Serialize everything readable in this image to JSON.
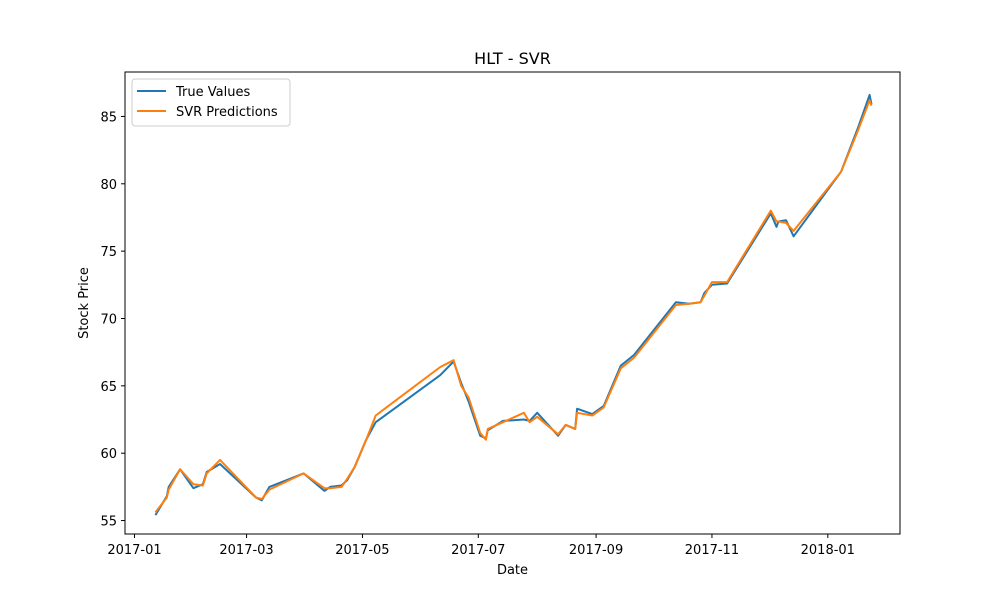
{
  "chart_data": {
    "type": "line",
    "title": "HLT - SVR",
    "xlabel": "Date",
    "ylabel": "Stock Price",
    "xlim": [
      "2016-12-27",
      "2018-02-08"
    ],
    "ylim": [
      54,
      88.3
    ],
    "x_ticks": [
      "2017-01",
      "2017-03",
      "2017-05",
      "2017-07",
      "2017-09",
      "2017-11",
      "2018-01"
    ],
    "y_ticks": [
      55,
      60,
      65,
      70,
      75,
      80,
      85
    ],
    "legend": {
      "position": "upper-left"
    },
    "grid": false,
    "colors": {
      "true_values": "#1f77b4",
      "svr_predictions": "#ff7f0e"
    },
    "series": [
      {
        "name": "True Values",
        "points": [
          [
            "2017-01-12",
            55.4
          ],
          [
            "2017-01-18",
            56.8
          ],
          [
            "2017-01-19",
            57.5
          ],
          [
            "2017-01-25",
            58.8
          ],
          [
            "2017-02-01",
            57.4
          ],
          [
            "2017-02-06",
            57.7
          ],
          [
            "2017-02-08",
            58.6
          ],
          [
            "2017-02-15",
            59.2
          ],
          [
            "2017-03-06",
            56.7
          ],
          [
            "2017-03-09",
            56.5
          ],
          [
            "2017-03-13",
            57.5
          ],
          [
            "2017-03-31",
            58.5
          ],
          [
            "2017-04-11",
            57.2
          ],
          [
            "2017-04-14",
            57.5
          ],
          [
            "2017-04-20",
            57.6
          ],
          [
            "2017-04-23",
            58.0
          ],
          [
            "2017-04-27",
            59.0
          ],
          [
            "2017-05-03",
            61.0
          ],
          [
            "2017-05-08",
            62.3
          ],
          [
            "2017-06-11",
            65.8
          ],
          [
            "2017-06-18",
            66.8
          ],
          [
            "2017-06-22",
            65.2
          ],
          [
            "2017-06-26",
            63.8
          ],
          [
            "2017-07-02",
            61.3
          ],
          [
            "2017-07-05",
            61.1
          ],
          [
            "2017-07-06",
            61.7
          ],
          [
            "2017-07-14",
            62.4
          ],
          [
            "2017-07-25",
            62.5
          ],
          [
            "2017-07-28",
            62.4
          ],
          [
            "2017-08-01",
            63.0
          ],
          [
            "2017-08-12",
            61.3
          ],
          [
            "2017-08-16",
            62.1
          ],
          [
            "2017-08-21",
            61.8
          ],
          [
            "2017-08-22",
            63.3
          ],
          [
            "2017-08-30",
            62.9
          ],
          [
            "2017-09-05",
            63.5
          ],
          [
            "2017-09-14",
            66.5
          ],
          [
            "2017-09-21",
            67.3
          ],
          [
            "2017-10-13",
            71.2
          ],
          [
            "2017-10-20",
            71.1
          ],
          [
            "2017-10-26",
            71.2
          ],
          [
            "2017-10-28",
            71.9
          ],
          [
            "2017-11-01",
            72.5
          ],
          [
            "2017-11-09",
            72.6
          ],
          [
            "2017-12-02",
            77.8
          ],
          [
            "2017-12-05",
            76.8
          ],
          [
            "2017-12-06",
            77.2
          ],
          [
            "2017-12-10",
            77.3
          ],
          [
            "2017-12-14",
            76.1
          ],
          [
            "2018-01-08",
            80.9
          ],
          [
            "2018-01-17",
            84.2
          ],
          [
            "2018-01-23",
            86.6
          ],
          [
            "2018-01-24",
            85.9
          ]
        ]
      },
      {
        "name": "SVR Predictions",
        "points": [
          [
            "2017-01-12",
            55.6
          ],
          [
            "2017-01-18",
            56.7
          ],
          [
            "2017-01-19",
            57.3
          ],
          [
            "2017-01-25",
            58.8
          ],
          [
            "2017-02-01",
            57.7
          ],
          [
            "2017-02-06",
            57.6
          ],
          [
            "2017-02-08",
            58.5
          ],
          [
            "2017-02-15",
            59.5
          ],
          [
            "2017-03-06",
            56.7
          ],
          [
            "2017-03-09",
            56.6
          ],
          [
            "2017-03-13",
            57.3
          ],
          [
            "2017-03-31",
            58.5
          ],
          [
            "2017-04-11",
            57.4
          ],
          [
            "2017-04-14",
            57.4
          ],
          [
            "2017-04-20",
            57.5
          ],
          [
            "2017-04-23",
            58.1
          ],
          [
            "2017-04-27",
            59.0
          ],
          [
            "2017-05-03",
            61.0
          ],
          [
            "2017-05-08",
            62.8
          ],
          [
            "2017-06-11",
            66.4
          ],
          [
            "2017-06-18",
            66.9
          ],
          [
            "2017-06-22",
            65.0
          ],
          [
            "2017-06-26",
            64.1
          ],
          [
            "2017-07-02",
            61.5
          ],
          [
            "2017-07-05",
            61.0
          ],
          [
            "2017-07-06",
            61.8
          ],
          [
            "2017-07-14",
            62.3
          ],
          [
            "2017-07-25",
            63.0
          ],
          [
            "2017-07-28",
            62.3
          ],
          [
            "2017-08-01",
            62.7
          ],
          [
            "2017-08-12",
            61.4
          ],
          [
            "2017-08-16",
            62.1
          ],
          [
            "2017-08-21",
            61.8
          ],
          [
            "2017-08-22",
            63.0
          ],
          [
            "2017-08-30",
            62.8
          ],
          [
            "2017-09-05",
            63.4
          ],
          [
            "2017-09-14",
            66.3
          ],
          [
            "2017-09-21",
            67.1
          ],
          [
            "2017-10-13",
            71.0
          ],
          [
            "2017-10-20",
            71.1
          ],
          [
            "2017-10-26",
            71.2
          ],
          [
            "2017-10-28",
            71.7
          ],
          [
            "2017-11-01",
            72.7
          ],
          [
            "2017-11-09",
            72.7
          ],
          [
            "2017-12-02",
            78.0
          ],
          [
            "2017-12-05",
            77.2
          ],
          [
            "2017-12-06",
            77.2
          ],
          [
            "2017-12-10",
            77.1
          ],
          [
            "2017-12-14",
            76.5
          ],
          [
            "2018-01-08",
            80.9
          ],
          [
            "2018-01-17",
            84.0
          ],
          [
            "2018-01-23",
            86.2
          ],
          [
            "2018-01-24",
            85.8
          ]
        ]
      }
    ]
  }
}
